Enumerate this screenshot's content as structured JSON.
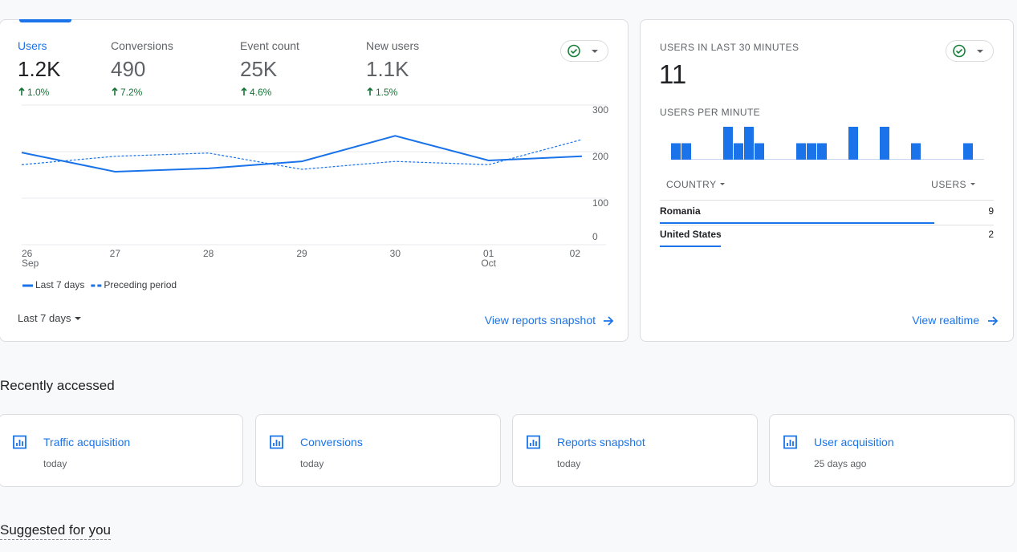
{
  "overview": {
    "metrics": [
      {
        "label": "Users",
        "value": "1.2K",
        "change": "1.0%"
      },
      {
        "label": "Conversions",
        "value": "490",
        "change": "7.2%"
      },
      {
        "label": "Event count",
        "value": "25K",
        "change": "4.6%"
      },
      {
        "label": "New users",
        "value": "1.1K",
        "change": "1.5%"
      }
    ],
    "chart": {
      "type": "line",
      "categories": [
        "26",
        "27",
        "28",
        "29",
        "30",
        "01",
        "02"
      ],
      "category_sublabels": [
        "Sep",
        null,
        null,
        null,
        null,
        "Oct",
        null
      ],
      "series": [
        {
          "name": "Last 7 days",
          "color": "#1a73e8",
          "style": "solid",
          "values": [
            198,
            157,
            164,
            179,
            234,
            181,
            190
          ]
        },
        {
          "name": "Preceding period",
          "color": "#1a73e8",
          "style": "dashed",
          "values": [
            172,
            190,
            197,
            162,
            179,
            172,
            226
          ]
        }
      ],
      "ylim": [
        0,
        300
      ],
      "yticks": [
        0,
        100,
        200,
        300
      ],
      "grid": true
    },
    "date_range": "Last 7 days",
    "link": "View reports snapshot"
  },
  "realtime": {
    "title": "USERS IN LAST 30 MINUTES",
    "value": "11",
    "chart": {
      "type": "bar",
      "title": "USERS PER MINUTE",
      "color": "#1a73e8",
      "values": [
        1,
        1,
        0,
        0,
        0,
        2,
        1,
        2,
        1,
        0,
        0,
        0,
        1,
        1,
        1,
        0,
        0,
        2,
        0,
        0,
        2,
        0,
        0,
        1,
        0,
        0,
        0,
        0,
        1,
        0
      ]
    },
    "table": {
      "columns": [
        "COUNTRY",
        "USERS"
      ],
      "rows": [
        [
          "Romania",
          9
        ],
        [
          "United States",
          2
        ]
      ]
    },
    "link": "View realtime"
  },
  "recently_accessed": {
    "title": "Recently accessed",
    "items": [
      {
        "name": "Traffic acquisition",
        "time": "today"
      },
      {
        "name": "Conversions",
        "time": "today"
      },
      {
        "name": "Reports snapshot",
        "time": "today"
      },
      {
        "name": "User acquisition",
        "time": "25 days ago"
      }
    ]
  },
  "suggested": {
    "title": "Suggested for you"
  }
}
